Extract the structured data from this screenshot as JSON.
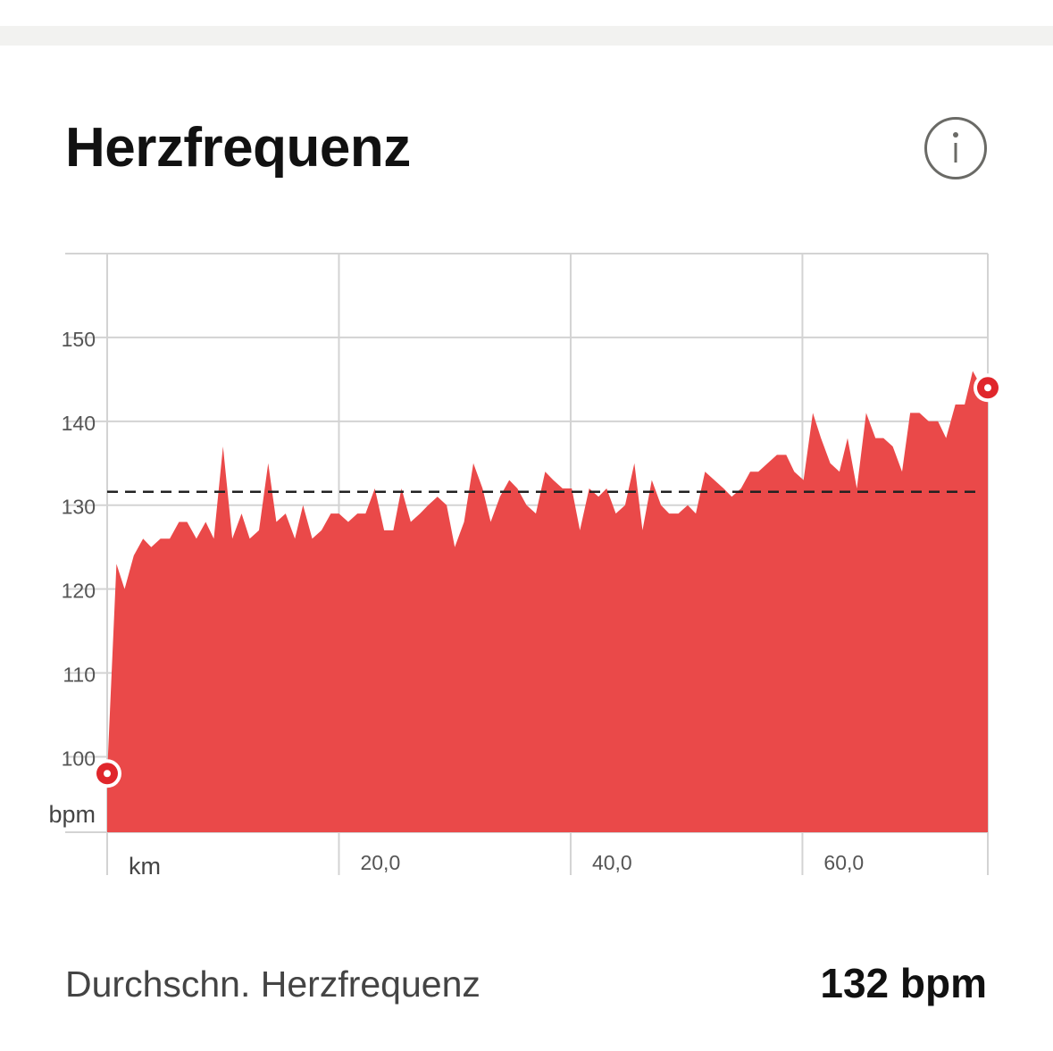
{
  "card": {
    "title": "Herzfrequenz",
    "info_icon": "info-circle-icon"
  },
  "colors": {
    "area_fill": "#ea4949",
    "marker": "#e0262b",
    "grid": "#d3d3d3",
    "average_line": "#222222"
  },
  "summary": {
    "label": "Durchschn. Herzfrequenz",
    "value": "132 bpm"
  },
  "chart_data": {
    "type": "area",
    "title": "",
    "x_unit_label": "km",
    "y_unit_label": "bpm",
    "xlim": [
      0,
      76
    ],
    "ylim": [
      91,
      160
    ],
    "x_ticks": [
      20,
      40,
      60
    ],
    "x_tick_labels": [
      "20,0",
      "40,0",
      "60,0"
    ],
    "x_gridlines": [
      0,
      20,
      40,
      60,
      76
    ],
    "y_ticks": [
      100,
      110,
      120,
      130,
      140,
      150
    ],
    "y_tick_labels": [
      "100",
      "110",
      "120",
      "130",
      "140",
      "150"
    ],
    "grid": true,
    "average": 131.6,
    "series": [
      {
        "x": [
          0,
          0.8,
          1.5,
          2.3,
          3.1,
          3.8,
          4.6,
          5.4,
          6.2,
          6.9,
          7.7,
          8.5,
          9.2,
          10.0,
          10.8,
          11.6,
          12.3,
          13.1,
          13.9,
          14.6,
          15.4,
          16.2,
          16.9,
          17.7,
          18.5,
          19.3,
          20.0,
          20.8,
          21.6,
          22.3,
          23.1,
          23.9,
          24.7,
          25.4,
          26.2,
          27.0,
          27.7,
          28.5,
          29.3,
          30.0,
          30.8,
          31.6,
          32.4,
          33.1,
          33.9,
          34.7,
          35.4,
          36.2,
          37.0,
          37.8,
          38.5,
          39.3,
          40.1,
          40.8,
          41.6,
          42.4,
          43.1,
          43.9,
          44.7,
          45.5,
          46.2,
          47.0,
          47.8,
          48.5,
          49.3,
          50.1,
          50.8,
          51.6,
          52.4,
          53.2,
          53.9,
          54.7,
          55.5,
          56.2,
          57.0,
          57.8,
          58.6,
          59.3,
          60.1,
          60.9,
          61.6,
          62.4,
          63.2,
          63.9,
          64.7,
          65.5,
          66.3,
          67.0,
          67.8,
          68.6,
          69.3,
          70.1,
          70.9,
          71.7,
          72.4,
          73.2,
          74.0,
          74.7,
          75.5,
          76.0
        ],
        "y": [
          98,
          123,
          120,
          124,
          126,
          125,
          126,
          126,
          128,
          128,
          126,
          128,
          126,
          137,
          126,
          129,
          126,
          127,
          135,
          128,
          129,
          126,
          130,
          126,
          127,
          129,
          129,
          128,
          129,
          129,
          132,
          127,
          127,
          132,
          128,
          129,
          130,
          131,
          130,
          125,
          128,
          135,
          132,
          128,
          131,
          133,
          132,
          130,
          129,
          134,
          133,
          132,
          132,
          127,
          132,
          131,
          132,
          129,
          130,
          135,
          127,
          133,
          130,
          129,
          129,
          130,
          129,
          134,
          133,
          132,
          131,
          132,
          134,
          134,
          135,
          136,
          136,
          134,
          133,
          141,
          138,
          135,
          134,
          138,
          132,
          141,
          138,
          138,
          137,
          134,
          141,
          141,
          140,
          140,
          138,
          142,
          142,
          146,
          144,
          144
        ]
      }
    ],
    "markers": [
      {
        "x": 0,
        "y": 98
      },
      {
        "x": 76,
        "y": 144
      }
    ]
  }
}
